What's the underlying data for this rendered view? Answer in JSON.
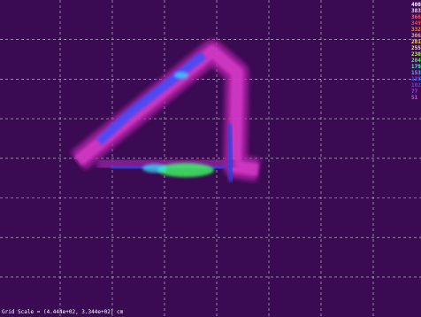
{
  "legend": [
    {
      "label": "400",
      "color": "#ffffff"
    },
    {
      "label": "383",
      "color": "#ffd0d0"
    },
    {
      "label": "366",
      "color": "#ff6060"
    },
    {
      "label": "349",
      "color": "#ff4040"
    },
    {
      "label": "332",
      "color": "#ff8040"
    },
    {
      "label": "306",
      "color": "#ffb040"
    },
    {
      "label": "281",
      "color": "#ffe040"
    },
    {
      "label": "255",
      "color": "#f0ff40"
    },
    {
      "label": "230",
      "color": "#a0ff40"
    },
    {
      "label": "204",
      "color": "#40ff40"
    },
    {
      "label": "179",
      "color": "#40ffc0"
    },
    {
      "label": "153",
      "color": "#40c0ff"
    },
    {
      "label": "128",
      "color": "#4060ff"
    },
    {
      "label": "102",
      "color": "#6040ff"
    },
    {
      "label": "77",
      "color": "#a040ff"
    },
    {
      "label": "51",
      "color": "#e040ff"
    }
  ],
  "footer": "Grid Scale = (4.444e+02, 3.344e+02) cm"
}
